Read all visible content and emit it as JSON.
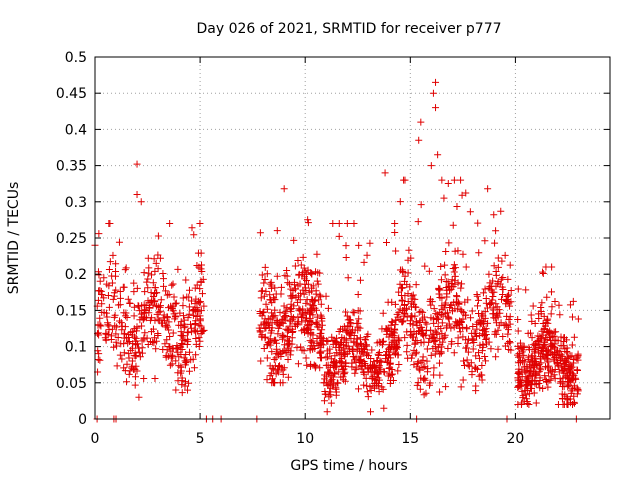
{
  "chart_data": {
    "type": "scatter",
    "title": "Day 026 of 2021, SRMTID for receiver p777",
    "xlabel": "GPS time / hours",
    "ylabel": "SRMTID / TECUs",
    "xlim": [
      0,
      24.5
    ],
    "ylim": [
      0,
      0.5
    ],
    "x_ticks": [
      0,
      5,
      10,
      15,
      20
    ],
    "y_ticks": [
      0,
      0.05,
      0.1,
      0.15,
      0.2,
      0.25,
      0.3,
      0.35,
      0.4,
      0.45,
      0.5
    ],
    "grid": true,
    "marker": "plus",
    "color": "#e00000",
    "density_segments": [
      {
        "x0": 0.1,
        "x1": 5.2,
        "count": 420,
        "base": 0.13,
        "spread": 0.05,
        "min": 0.03,
        "max": 0.27
      },
      {
        "x0": 7.8,
        "x1": 10.9,
        "count": 360,
        "base": 0.13,
        "spread": 0.05,
        "min": 0.05,
        "max": 0.29
      },
      {
        "x0": 10.9,
        "x1": 14.5,
        "count": 380,
        "base": 0.09,
        "spread": 0.035,
        "min": 0.01,
        "max": 0.27
      },
      {
        "x0": 14.5,
        "x1": 19.8,
        "count": 480,
        "base": 0.13,
        "spread": 0.05,
        "min": 0.03,
        "max": 0.33
      },
      {
        "x0": 20.1,
        "x1": 23.0,
        "count": 380,
        "base": 0.08,
        "spread": 0.035,
        "min": 0.02,
        "max": 0.21
      }
    ],
    "highlight_points": [
      {
        "x": 16.2,
        "y": 0.465
      },
      {
        "x": 16.1,
        "y": 0.45
      },
      {
        "x": 16.2,
        "y": 0.43
      },
      {
        "x": 15.5,
        "y": 0.41
      },
      {
        "x": 15.4,
        "y": 0.385
      },
      {
        "x": 16.3,
        "y": 0.365
      },
      {
        "x": 16.0,
        "y": 0.35
      },
      {
        "x": 16.5,
        "y": 0.33
      },
      {
        "x": 2.0,
        "y": 0.352
      },
      {
        "x": 2.0,
        "y": 0.31
      },
      {
        "x": 13.8,
        "y": 0.34
      },
      {
        "x": 9.0,
        "y": 0.318
      },
      {
        "x": 2.2,
        "y": 0.3
      },
      {
        "x": 0.0,
        "y": 0.24
      },
      {
        "x": 16.6,
        "y": 0.305
      }
    ],
    "zero_points": [
      0.1,
      0.9,
      1.0,
      5.3,
      5.6,
      6.0,
      7.7,
      15.3,
      19.6,
      22.9
    ]
  }
}
